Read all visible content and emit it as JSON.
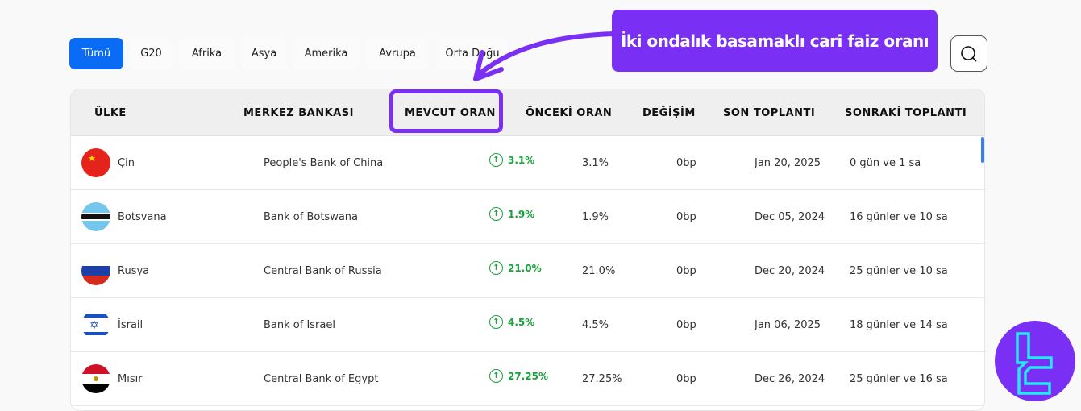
{
  "tabs": [
    {
      "label": "Tümü",
      "active": true
    },
    {
      "label": "G20"
    },
    {
      "label": "Afrika"
    },
    {
      "label": "Asya"
    },
    {
      "label": "Amerika"
    },
    {
      "label": "Avrupa"
    },
    {
      "label": "Orta Doğu"
    }
  ],
  "callout": "İki ondalık basamaklı cari faiz oranı",
  "accent": "#7a2ff4",
  "headers": [
    "ÜLKE",
    "MERKEZ BANKASI",
    "MEVCUT ORAN",
    "ÖNCEKİ ORAN",
    "DEĞİŞİM",
    "SON TOPLANTI",
    "SONRAKİ TOPLANTI"
  ],
  "rows": [
    {
      "country": "Çin",
      "bank": "People's Bank of China",
      "current": "3.1%",
      "previous": "3.1%",
      "change": "0bp",
      "last": "Jan 20, 2025",
      "next": "0 gün ve 1 sa"
    },
    {
      "country": "Botsvana",
      "bank": "Bank of Botswana",
      "current": "1.9%",
      "previous": "1.9%",
      "change": "0bp",
      "last": "Dec 05, 2024",
      "next": "16 günler ve 10 sa"
    },
    {
      "country": "Rusya",
      "bank": "Central Bank of Russia",
      "current": "21.0%",
      "previous": "21.0%",
      "change": "0bp",
      "last": "Dec 20, 2024",
      "next": "25 günler ve 10 sa"
    },
    {
      "country": "İsrail",
      "bank": "Bank of Israel",
      "current": "4.5%",
      "previous": "4.5%",
      "change": "0bp",
      "last": "Jan 06, 2025",
      "next": "18 günler ve 14 sa"
    },
    {
      "country": "Mısır",
      "bank": "Central Bank of Egypt",
      "current": "27.25%",
      "previous": "27.25%",
      "change": "0bp",
      "last": "Dec 26, 2024",
      "next": "25 günler ve 16 sa"
    }
  ]
}
